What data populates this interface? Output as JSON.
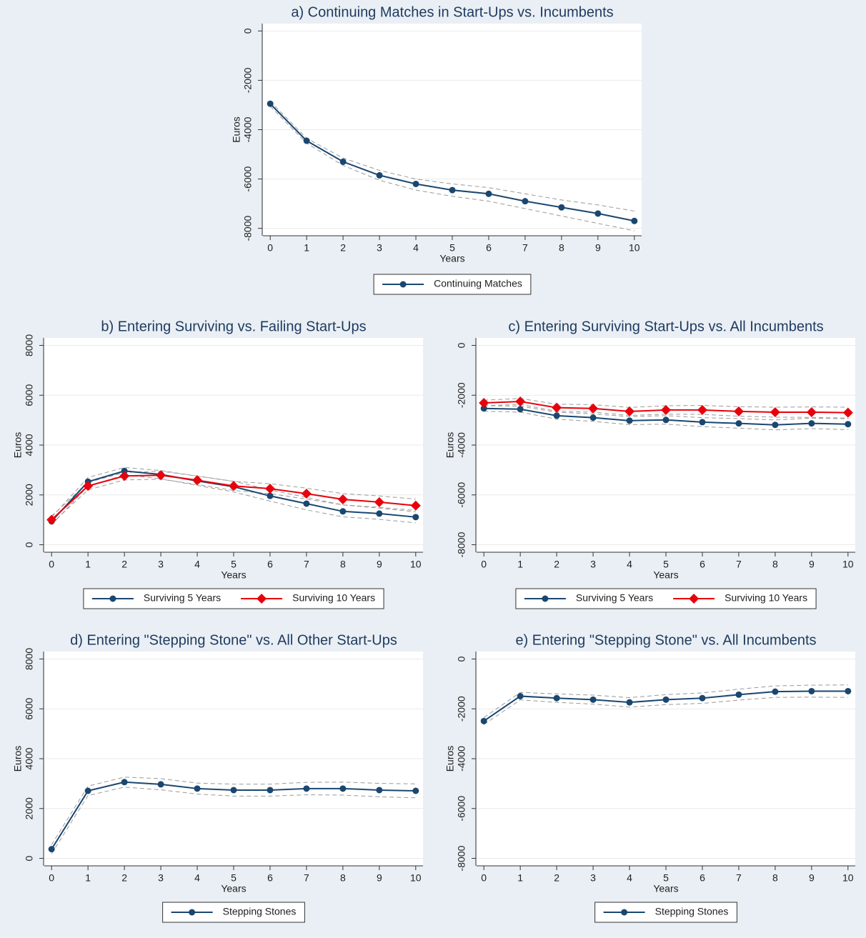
{
  "chart_data": [
    {
      "type": "line",
      "title": "a) Continuing Matches in Start-Ups vs. Incumbents",
      "xlabel": "Years",
      "ylabel": "Euros",
      "x": [
        0,
        1,
        2,
        3,
        4,
        5,
        6,
        7,
        8,
        9,
        10
      ],
      "xlim": [
        -0.2,
        10.2
      ],
      "xticks": [
        0,
        1,
        2,
        3,
        4,
        5,
        6,
        7,
        8,
        9,
        10
      ],
      "ylim": [
        -8300,
        300
      ],
      "yticks": [
        0,
        -2000,
        -4000,
        -6000,
        -8000
      ],
      "grid": true,
      "legend": "bottom",
      "series": [
        {
          "name": "Continuing Matches",
          "color": "#1a476f",
          "marker": "circle",
          "values": [
            -2950,
            -4450,
            -5300,
            -5850,
            -6200,
            -6450,
            -6600,
            -6900,
            -7150,
            -7400,
            -7700
          ],
          "upper": [
            -2850,
            -4350,
            -5150,
            -5650,
            -6000,
            -6200,
            -6350,
            -6600,
            -6850,
            -7050,
            -7300
          ],
          "lower": [
            -3050,
            -4550,
            -5450,
            -6050,
            -6450,
            -6700,
            -6900,
            -7200,
            -7500,
            -7800,
            -8100
          ]
        }
      ]
    },
    {
      "type": "line",
      "title": "b) Entering Surviving vs. Failing Start-Ups",
      "xlabel": "Years",
      "ylabel": "Euros",
      "x": [
        0,
        1,
        2,
        3,
        4,
        5,
        6,
        7,
        8,
        9,
        10
      ],
      "xlim": [
        -0.2,
        10.2
      ],
      "xticks": [
        0,
        1,
        2,
        3,
        4,
        5,
        6,
        7,
        8,
        9,
        10
      ],
      "ylim": [
        -300,
        8300
      ],
      "yticks": [
        0,
        2000,
        4000,
        6000,
        8000
      ],
      "grid": true,
      "legend": "bottom",
      "series": [
        {
          "name": "Surviving 5 Years",
          "color": "#1a476f",
          "marker": "circle",
          "values": [
            940,
            2530,
            2960,
            2820,
            2560,
            2330,
            1960,
            1650,
            1340,
            1250,
            1110
          ],
          "upper": [
            1100,
            2700,
            3100,
            2980,
            2750,
            2550,
            2200,
            1900,
            1600,
            1500,
            1380
          ],
          "lower": [
            800,
            2350,
            2800,
            2650,
            2380,
            2120,
            1750,
            1400,
            1120,
            1020,
            880
          ]
        },
        {
          "name": "Surviving 10 Years",
          "color": "#e8000b",
          "marker": "diamond",
          "values": [
            1000,
            2360,
            2760,
            2790,
            2590,
            2360,
            2250,
            2050,
            1820,
            1710,
            1570
          ],
          "upper": [
            1150,
            2500,
            2900,
            2950,
            2760,
            2540,
            2450,
            2270,
            2050,
            1960,
            1830
          ],
          "lower": [
            850,
            2200,
            2600,
            2630,
            2420,
            2180,
            2050,
            1830,
            1600,
            1470,
            1320
          ]
        }
      ]
    },
    {
      "type": "line",
      "title": "c) Entering Surviving Start-Ups vs. All Incumbents",
      "xlabel": "Years",
      "ylabel": "Euros",
      "x": [
        0,
        1,
        2,
        3,
        4,
        5,
        6,
        7,
        8,
        9,
        10
      ],
      "xlim": [
        -0.2,
        10.2
      ],
      "xticks": [
        0,
        1,
        2,
        3,
        4,
        5,
        6,
        7,
        8,
        9,
        10
      ],
      "ylim": [
        -8300,
        300
      ],
      "yticks": [
        0,
        -2000,
        -4000,
        -6000,
        -8000
      ],
      "grid": true,
      "legend": "bottom",
      "series": [
        {
          "name": "Surviving 5 Years",
          "color": "#1a476f",
          "marker": "circle",
          "values": [
            -2530,
            -2560,
            -2820,
            -2900,
            -3020,
            -2990,
            -3080,
            -3130,
            -3190,
            -3130,
            -3160
          ],
          "upper": [
            -2420,
            -2440,
            -2680,
            -2750,
            -2860,
            -2820,
            -2900,
            -2940,
            -2990,
            -2920,
            -2940
          ],
          "lower": [
            -2640,
            -2680,
            -2960,
            -3050,
            -3180,
            -3160,
            -3260,
            -3320,
            -3390,
            -3340,
            -3380
          ]
        },
        {
          "name": "Surviving 10 Years",
          "color": "#e8000b",
          "marker": "diamond",
          "values": [
            -2310,
            -2250,
            -2500,
            -2530,
            -2650,
            -2590,
            -2590,
            -2650,
            -2680,
            -2680,
            -2700
          ],
          "upper": [
            -2200,
            -2130,
            -2360,
            -2380,
            -2490,
            -2420,
            -2410,
            -2460,
            -2480,
            -2470,
            -2480
          ],
          "lower": [
            -2420,
            -2370,
            -2640,
            -2680,
            -2810,
            -2760,
            -2770,
            -2840,
            -2880,
            -2890,
            -2920
          ]
        }
      ]
    },
    {
      "type": "line",
      "title": "d) Entering \"Stepping Stone\" vs. All Other Start-Ups",
      "xlabel": "Years",
      "ylabel": "Euros",
      "x": [
        0,
        1,
        2,
        3,
        4,
        5,
        6,
        7,
        8,
        9,
        10
      ],
      "xlim": [
        -0.2,
        10.2
      ],
      "xticks": [
        0,
        1,
        2,
        3,
        4,
        5,
        6,
        7,
        8,
        9,
        10
      ],
      "ylim": [
        -300,
        8300
      ],
      "yticks": [
        0,
        2000,
        4000,
        6000,
        8000
      ],
      "grid": true,
      "legend": "bottom",
      "series": [
        {
          "name": "Stepping Stones",
          "color": "#1a476f",
          "marker": "circle",
          "values": [
            370,
            2710,
            3060,
            2970,
            2800,
            2740,
            2740,
            2800,
            2800,
            2740,
            2710
          ],
          "upper": [
            550,
            2900,
            3260,
            3200,
            3020,
            2980,
            2980,
            3050,
            3060,
            3010,
            2990
          ],
          "lower": [
            190,
            2520,
            2860,
            2750,
            2580,
            2500,
            2500,
            2550,
            2540,
            2470,
            2430
          ]
        }
      ]
    },
    {
      "type": "line",
      "title": "e) Entering \"Stepping Stone\" vs. All Incumbents",
      "xlabel": "Years",
      "ylabel": "Euros",
      "x": [
        0,
        1,
        2,
        3,
        4,
        5,
        6,
        7,
        8,
        9,
        10
      ],
      "xlim": [
        -0.2,
        10.2
      ],
      "xticks": [
        0,
        1,
        2,
        3,
        4,
        5,
        6,
        7,
        8,
        9,
        10
      ],
      "ylim": [
        -8300,
        300
      ],
      "yticks": [
        0,
        -2000,
        -4000,
        -6000,
        -8000
      ],
      "grid": true,
      "legend": "bottom",
      "series": [
        {
          "name": "Stepping Stones",
          "color": "#1a476f",
          "marker": "circle",
          "values": [
            -2490,
            -1490,
            -1570,
            -1630,
            -1740,
            -1630,
            -1570,
            -1430,
            -1310,
            -1290,
            -1290
          ],
          "upper": [
            -2350,
            -1340,
            -1400,
            -1450,
            -1550,
            -1430,
            -1360,
            -1210,
            -1080,
            -1050,
            -1040
          ],
          "lower": [
            -2630,
            -1640,
            -1740,
            -1810,
            -1930,
            -1830,
            -1780,
            -1650,
            -1540,
            -1530,
            -1540
          ]
        }
      ]
    }
  ]
}
